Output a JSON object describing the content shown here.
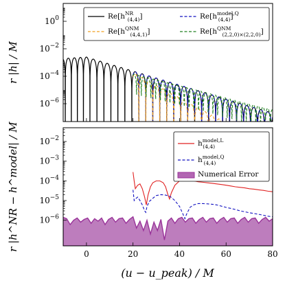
{
  "chart_data": [
    {
      "type": "line",
      "panel": "top",
      "ylabel": "r |h| / M",
      "yscale": "log",
      "ylim": [
        5e-08,
        20
      ],
      "xlim": [
        -10,
        80
      ],
      "yticks": [
        {
          "value": 1,
          "label": "10^0",
          "base": "10",
          "exp": "0"
        },
        {
          "value": 0.01,
          "label": "10^-2",
          "base": "10",
          "exp": "−2"
        },
        {
          "value": 0.0001,
          "label": "10^-4",
          "base": "10",
          "exp": "−4"
        },
        {
          "value": 1e-06,
          "label": "10^-6",
          "base": "10",
          "exp": "−6"
        }
      ],
      "legend_position": "top-right",
      "series": [
        {
          "name": "Re[h^NR_(4,4)]",
          "main": "Re[h",
          "sup": "NR",
          "sub": "(4,4)",
          "tail": "]",
          "color": "#000000",
          "dash": "solid",
          "x_start": -10,
          "x_end": 80,
          "amp_at_zero": 0.0025,
          "decay_rate": 0.0,
          "ringdown_start": 0,
          "ringdown_decay": 0.1175,
          "half_period": 3.0
        },
        {
          "name": "Re[h^model,Q_(4,4)]",
          "main": "Re[h",
          "sup": "model,Q",
          "sub": "(4,4)",
          "tail": "]",
          "color": "#1010c0",
          "dash": "dashed",
          "x_start": 20,
          "x_end": 80,
          "amp_at_zero": 0.0025,
          "ringdown_decay": 0.1175,
          "half_period": 3.0
        },
        {
          "name": "Re[h^QNM_(4,4,1)]",
          "main": "Re[h",
          "sup": "QNM",
          "sub": "(4,4,1)",
          "tail": "]",
          "color": "#f0a020",
          "dash": "dashed",
          "x_start": 20,
          "x_end": 80,
          "amp_at_zero": 0.012,
          "ringdown_decay": 0.21,
          "half_period": 3.0
        },
        {
          "name": "Re[h^QNM_(2,2,0)×(2,2,0)]",
          "main": "Re[h",
          "sup": "QNM",
          "sub": "(2,2,0)×(2,2,0)",
          "tail": "]",
          "color": "#208020",
          "dash": "dashed",
          "x_start": 20,
          "x_end": 80,
          "amp_at_zero": 0.0011,
          "ringdown_decay": 0.1,
          "half_period": 2.05
        }
      ]
    },
    {
      "type": "line",
      "panel": "bottom",
      "xlabel": "(u − u_peak) / M",
      "ylabel": "r |h^NR − h^model| / M",
      "yscale": "log",
      "ylim": [
        5e-08,
        0.05
      ],
      "xlim": [
        -10,
        80
      ],
      "xticks": [
        0,
        20,
        40,
        60,
        80
      ],
      "yticks": [
        {
          "value": 0.01,
          "label": "10^-2",
          "base": "10",
          "exp": "−2"
        },
        {
          "value": 0.001,
          "label": "10^-3",
          "base": "10",
          "exp": "−3"
        },
        {
          "value": 0.0001,
          "label": "10^-4",
          "base": "10",
          "exp": "−4"
        },
        {
          "value": 1e-05,
          "label": "10^-5",
          "base": "10",
          "exp": "−5"
        },
        {
          "value": 1e-06,
          "label": "10^-6",
          "base": "10",
          "exp": "−6"
        }
      ],
      "legend_position": "top-right",
      "series": [
        {
          "name": "h^model,L_(4,4)",
          "main": "h",
          "sup": "model,L",
          "sub": "(4,4)",
          "tail": "",
          "color": "#e02020",
          "dash": "solid",
          "x": [
            20.0,
            20.5,
            21.0,
            22.0,
            23.0,
            24.0,
            25.0,
            25.7,
            26.5,
            27.5,
            28.5,
            30.0,
            31.5,
            33.0,
            34.0,
            35.0,
            35.7,
            36.5,
            38.0,
            40.0,
            42.0,
            44.0,
            46.0,
            48.0,
            50.0,
            52.0,
            54.0,
            56.0,
            58.0,
            60.0,
            62.0,
            64.0,
            66.0,
            68.0,
            70.0,
            72.0,
            74.0,
            76.0,
            78.0,
            80.0
          ],
          "y": [
            0.00028,
            0.0001,
            4e-05,
            6e-05,
            7e-05,
            4e-05,
            1.5e-05,
            6e-06,
            2e-05,
            5e-05,
            8e-05,
            0.0001,
            0.0001,
            8e-05,
            5e-05,
            2e-05,
            1.2e-05,
            2.5e-05,
            6e-05,
            0.0001,
            0.00011,
            0.00011,
            0.0001,
            9e-05,
            8.5e-05,
            8e-05,
            7.5e-05,
            7e-05,
            6.5e-05,
            6e-05,
            5.5e-05,
            5e-05,
            4.7e-05,
            4.4e-05,
            4e-05,
            3.8e-05,
            3.5e-05,
            3.3e-05,
            3e-05,
            2.8e-05
          ]
        },
        {
          "name": "h^model,Q_(4,4)",
          "main": "h",
          "sup": "model,Q",
          "sub": "(4,4)",
          "tail": "",
          "color": "#1010c0",
          "dash": "dashed",
          "x": [
            20.0,
            20.5,
            21.0,
            22.0,
            23.0,
            24.0,
            25.0,
            25.5,
            26.0,
            27.0,
            28.5,
            30.0,
            32.0,
            34.0,
            36.0,
            38.0,
            40.0,
            41.5,
            42.3,
            43.0,
            44.5,
            46.0,
            48.0,
            50.0,
            52.0,
            54.0,
            56.0,
            58.0,
            60.0,
            62.0,
            64.0,
            66.0,
            68.0,
            70.0,
            72.0,
            74.0,
            76.0,
            78.0,
            80.0
          ],
          "y": [
            3.5e-05,
            1e-05,
            1.2e-05,
            1.5e-05,
            1e-05,
            6e-06,
            3e-06,
            2.5e-06,
            5e-06,
            9e-06,
            1.3e-05,
            1.8e-05,
            2e-05,
            1.9e-05,
            1.6e-05,
            1e-05,
            5e-06,
            2e-06,
            1.2e-06,
            2e-06,
            4.5e-06,
            6e-06,
            7e-06,
            7e-06,
            6.8e-06,
            6.5e-06,
            6e-06,
            5.2e-06,
            4.5e-06,
            4e-06,
            3.5e-06,
            3e-06,
            2.7e-06,
            2.4e-06,
            2.2e-06,
            2e-06,
            1.8e-06,
            1.6e-06,
            1.5e-06
          ]
        },
        {
          "name": "Numerical Error",
          "main": "Numerical Error",
          "sup": "",
          "sub": "",
          "tail": "",
          "color": "#993399",
          "fill": "#b266b2",
          "kind": "area",
          "x": [
            -10,
            -8.5,
            -7,
            -5.5,
            -4,
            -2.5,
            -1,
            0.5,
            2,
            3.5,
            5,
            6.5,
            8,
            9.5,
            11,
            12.5,
            14,
            15.5,
            17,
            18.5,
            20,
            21.5,
            23,
            24.5,
            26,
            27.5,
            29,
            30.5,
            32,
            33.5,
            35,
            36.5,
            38,
            39.5,
            41,
            42.5,
            44,
            45.5,
            47,
            48.5,
            50,
            51.5,
            53,
            54.5,
            56,
            57.5,
            59,
            60.5,
            62,
            63.5,
            65,
            66.5,
            68,
            69.5,
            71,
            72.5,
            74,
            75.5,
            77,
            78.5,
            80
          ],
          "y": [
            1.4e-06,
            1.2e-06,
            6e-07,
            1e-06,
            1.3e-06,
            8e-07,
            1.1e-06,
            1.3e-06,
            7e-07,
            1.2e-06,
            9e-07,
            1.3e-06,
            6e-07,
            1.1e-06,
            1.4e-06,
            8e-07,
            1.2e-06,
            1.3e-06,
            7e-07,
            1.1e-06,
            1.5e-06,
            4e-07,
            9e-07,
            3e-07,
            1e-06,
            2e-07,
            8e-07,
            3e-07,
            1.1e-06,
            1e-07,
            9e-07,
            1.3e-06,
            7e-07,
            1.2e-06,
            1.4e-06,
            8e-07,
            1.2e-06,
            1.3e-06,
            7e-07,
            1.1e-06,
            1.4e-06,
            8e-07,
            1.2e-06,
            1.3e-06,
            7e-07,
            1.1e-06,
            1.4e-06,
            8e-07,
            1.2e-06,
            1.3e-06,
            7e-07,
            1.1e-06,
            1.4e-06,
            8e-07,
            1.2e-06,
            1.3e-06,
            7e-07,
            1.1e-06,
            1.4e-06,
            9e-07,
            1.2e-06
          ]
        }
      ]
    }
  ],
  "labels": {
    "top_ylabel": "r |h| / M",
    "bottom_ylabel": "r |h^NR − h^model| / M",
    "xlabel": "(u − u_peak) / M",
    "xtick_labels": [
      "0",
      "20",
      "40",
      "60",
      "80"
    ]
  }
}
